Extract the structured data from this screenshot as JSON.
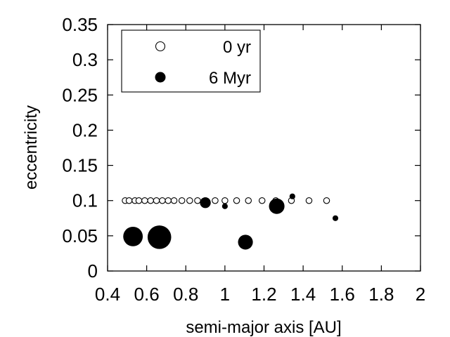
{
  "chart_data": {
    "type": "scatter",
    "xlabel": "semi-major axis [AU]",
    "ylabel": "eccentricity",
    "xlim": [
      0.4,
      2.0
    ],
    "ylim": [
      0,
      0.35
    ],
    "xticks": [
      0.4,
      0.6,
      0.8,
      1.0,
      1.2,
      1.4,
      1.6,
      1.8,
      2.0
    ],
    "xtick_labels": [
      "0.4",
      "0.6",
      "0.8",
      "1",
      "1.2",
      "1.4",
      "1.6",
      "1.8",
      "2"
    ],
    "yticks": [
      0,
      0.05,
      0.1,
      0.15,
      0.2,
      0.25,
      0.3,
      0.35
    ],
    "ytick_labels": [
      "0",
      "0.05",
      "0.1",
      "0.15",
      "0.2",
      "0.25",
      "0.3",
      "0.35"
    ],
    "grid": false,
    "legend_position": "top-left",
    "series": [
      {
        "name": "0 yr",
        "marker": "open-circle",
        "points": [
          {
            "x": 0.49,
            "y": 0.1
          },
          {
            "x": 0.51,
            "y": 0.1
          },
          {
            "x": 0.54,
            "y": 0.1
          },
          {
            "x": 0.56,
            "y": 0.1
          },
          {
            "x": 0.59,
            "y": 0.1
          },
          {
            "x": 0.62,
            "y": 0.1
          },
          {
            "x": 0.65,
            "y": 0.1
          },
          {
            "x": 0.68,
            "y": 0.1
          },
          {
            "x": 0.71,
            "y": 0.1
          },
          {
            "x": 0.74,
            "y": 0.1
          },
          {
            "x": 0.78,
            "y": 0.1
          },
          {
            "x": 0.82,
            "y": 0.1
          },
          {
            "x": 0.86,
            "y": 0.1
          },
          {
            "x": 0.9,
            "y": 0.1
          },
          {
            "x": 0.95,
            "y": 0.1
          },
          {
            "x": 1.0,
            "y": 0.1
          },
          {
            "x": 1.06,
            "y": 0.1
          },
          {
            "x": 1.12,
            "y": 0.1
          },
          {
            "x": 1.19,
            "y": 0.1
          },
          {
            "x": 1.26,
            "y": 0.1
          },
          {
            "x": 1.34,
            "y": 0.1
          },
          {
            "x": 1.43,
            "y": 0.1
          },
          {
            "x": 1.52,
            "y": 0.1
          }
        ]
      },
      {
        "name": "6 Myr",
        "marker": "filled-circle",
        "points": [
          {
            "x": 0.53,
            "y": 0.049,
            "size": 2.9
          },
          {
            "x": 0.665,
            "y": 0.048,
            "size": 3.5
          },
          {
            "x": 0.9,
            "y": 0.097,
            "size": 1.6
          },
          {
            "x": 1.0,
            "y": 0.092,
            "size": 0.85
          },
          {
            "x": 1.105,
            "y": 0.041,
            "size": 2.2
          },
          {
            "x": 1.265,
            "y": 0.092,
            "size": 2.3
          },
          {
            "x": 1.345,
            "y": 0.106,
            "size": 0.85
          },
          {
            "x": 1.565,
            "y": 0.075,
            "size": 0.85
          }
        ]
      }
    ]
  }
}
